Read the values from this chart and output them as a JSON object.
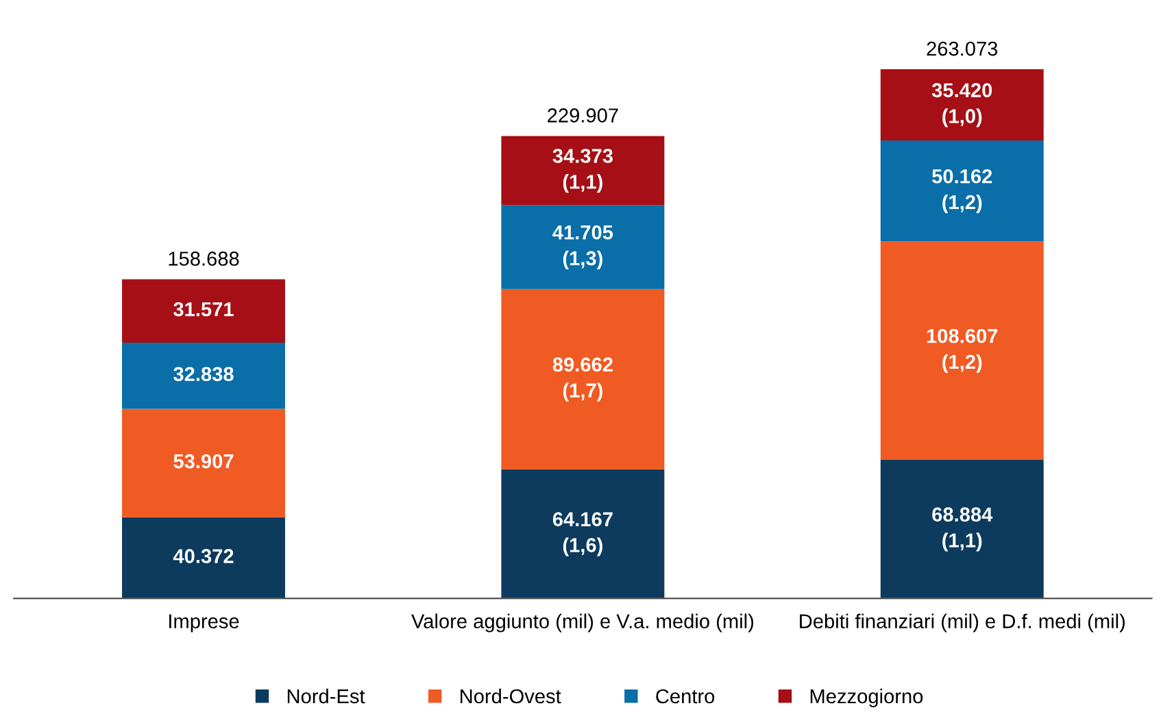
{
  "chart_data": {
    "type": "bar",
    "stacked": true,
    "categories": [
      "Imprese",
      "Valore aggiunto (mil) e V.a. medio (mil)",
      "Debiti finanziari (mil) e D.f. medi (mil)"
    ],
    "series": [
      {
        "name": "Nord-Est",
        "color": "#0d3b5e",
        "values": [
          40372,
          64167,
          68884
        ],
        "value_labels": [
          "40.372",
          "64.167\n(1,6)",
          "68.884\n(1,1)"
        ]
      },
      {
        "name": "Nord-Ovest",
        "color": "#f05a23",
        "values": [
          53907,
          89662,
          108607
        ],
        "value_labels": [
          "53.907",
          "89.662\n(1,7)",
          "108.607\n(1,2)"
        ]
      },
      {
        "name": "Centro",
        "color": "#0a6ea8",
        "values": [
          32838,
          41705,
          50162
        ],
        "value_labels": [
          "32.838",
          "41.705\n(1,3)",
          "50.162\n(1,2)"
        ]
      },
      {
        "name": "Mezzogiorno",
        "color": "#a50f15",
        "values": [
          31571,
          34373,
          35420
        ],
        "value_labels": [
          "31.571",
          "34.373\n(1,1)",
          "35.420\n(1,0)"
        ]
      }
    ],
    "totals": [
      "158.688",
      "229.907",
      "263.073"
    ],
    "tick_labels": "x",
    "grid": false,
    "legend": "bottom",
    "marker": "square"
  }
}
